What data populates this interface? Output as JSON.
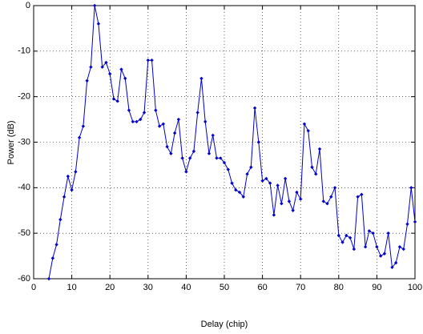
{
  "chart_data": {
    "type": "line",
    "xlabel": "Delay (chip)",
    "ylabel": "Power (dB)",
    "xlim": [
      0,
      100
    ],
    "ylim": [
      -60,
      0
    ],
    "xticks": [
      0,
      10,
      20,
      30,
      40,
      50,
      60,
      70,
      80,
      90,
      100
    ],
    "yticks": [
      -60,
      -50,
      -40,
      -30,
      -20,
      -10,
      0
    ],
    "grid": true,
    "x": [
      4,
      5,
      6,
      7,
      8,
      9,
      10,
      11,
      12,
      13,
      14,
      15,
      16,
      17,
      18,
      19,
      20,
      21,
      22,
      23,
      24,
      25,
      26,
      27,
      28,
      29,
      30,
      31,
      32,
      33,
      34,
      35,
      36,
      37,
      38,
      39,
      40,
      41,
      42,
      43,
      44,
      45,
      46,
      47,
      48,
      49,
      50,
      51,
      52,
      53,
      54,
      55,
      56,
      57,
      58,
      59,
      60,
      61,
      62,
      63,
      64,
      65,
      66,
      67,
      68,
      69,
      70,
      71,
      72,
      73,
      74,
      75,
      76,
      77,
      78,
      79,
      80,
      81,
      82,
      83,
      84,
      85,
      86,
      87,
      88,
      89,
      90,
      91,
      92,
      93,
      94,
      95,
      96,
      97,
      98,
      99,
      100
    ],
    "series": [
      {
        "color": "#0000cc",
        "values": [
          -60,
          -55.5,
          -52.5,
          -47,
          -42,
          -37.5,
          -40.5,
          -36.5,
          -29,
          -26.5,
          -16.5,
          -13.5,
          0,
          -4,
          -13.5,
          -12.5,
          -15,
          -20.5,
          -21,
          -14,
          -16,
          -23,
          -25.5,
          -25.5,
          -25,
          -23.5,
          -12,
          -12,
          -23,
          -26.5,
          -26,
          -31,
          -32.5,
          -28,
          -25,
          -33.5,
          -36.5,
          -33.5,
          -32,
          -23.5,
          -16,
          -25.5,
          -32.5,
          -28.5,
          -33.5,
          -33.5,
          -34.5,
          -36,
          -39,
          -40.5,
          -41,
          -42,
          -37,
          -35.5,
          -22.5,
          -30,
          -38.5,
          -38,
          -39,
          -46,
          -39.5,
          -43.5,
          -38,
          -43,
          -45,
          -41,
          -42.5,
          -26,
          -27.5,
          -35.5,
          -37,
          -31.5,
          -43,
          -43.5,
          -42,
          -40,
          -50.5,
          -52,
          -50.5,
          -51,
          -53.5,
          -42,
          -41.5,
          -53,
          -49.5,
          -50,
          -53,
          -55,
          -54.5,
          -50,
          -57.5,
          -56.5,
          -53,
          -53.5,
          -48,
          -40,
          -47.5
        ]
      }
    ]
  }
}
